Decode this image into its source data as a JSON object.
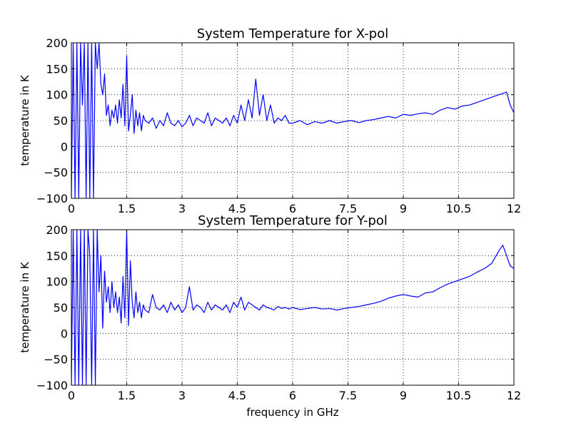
{
  "chart_data": [
    {
      "type": "line",
      "title": "System Temperature for X-pol",
      "xlabel": "",
      "ylabel": "temperature in K",
      "xlim": [
        0,
        12
      ],
      "ylim": [
        -100,
        200
      ],
      "xticks": [
        0,
        1.5,
        3,
        4.5,
        6,
        7.5,
        9,
        10.5,
        12
      ],
      "yticks": [
        -100,
        -50,
        0,
        50,
        100,
        150,
        200
      ],
      "xtick_labels": [
        "0",
        "1.5",
        "3",
        "4.5",
        "6",
        "7.5",
        "9",
        "10.5",
        "12"
      ],
      "ytick_labels": [
        "−100",
        "−50",
        "0",
        "50",
        "100",
        "150",
        "200"
      ],
      "grid": true,
      "series": [
        {
          "color": "#0000ff",
          "x": [
            0.0,
            0.05,
            0.1,
            0.15,
            0.2,
            0.25,
            0.3,
            0.35,
            0.4,
            0.45,
            0.5,
            0.55,
            0.6,
            0.65,
            0.7,
            0.75,
            0.8,
            0.85,
            0.9,
            0.95,
            1.0,
            1.05,
            1.1,
            1.15,
            1.2,
            1.25,
            1.3,
            1.35,
            1.4,
            1.45,
            1.5,
            1.55,
            1.6,
            1.65,
            1.7,
            1.75,
            1.8,
            1.85,
            1.9,
            1.95,
            2.0,
            2.1,
            2.2,
            2.3,
            2.4,
            2.5,
            2.6,
            2.7,
            2.8,
            2.9,
            3.0,
            3.1,
            3.2,
            3.3,
            3.4,
            3.5,
            3.6,
            3.7,
            3.8,
            3.9,
            4.0,
            4.1,
            4.2,
            4.3,
            4.4,
            4.5,
            4.6,
            4.7,
            4.8,
            4.9,
            5.0,
            5.1,
            5.2,
            5.3,
            5.4,
            5.5,
            5.6,
            5.7,
            5.8,
            5.9,
            6.0,
            6.2,
            6.4,
            6.6,
            6.8,
            7.0,
            7.2,
            7.4,
            7.6,
            7.8,
            8.0,
            8.2,
            8.4,
            8.6,
            8.8,
            9.0,
            9.2,
            9.4,
            9.6,
            9.8,
            10.0,
            10.2,
            10.4,
            10.6,
            10.8,
            11.0,
            11.2,
            11.4,
            11.6,
            11.8,
            11.9,
            12.0
          ],
          "y": [
            -100,
            200,
            -100,
            200,
            -100,
            200,
            80,
            200,
            -100,
            200,
            -100,
            200,
            -100,
            200,
            150,
            200,
            120,
            100,
            140,
            60,
            80,
            40,
            70,
            55,
            80,
            45,
            90,
            55,
            120,
            40,
            175,
            30,
            60,
            100,
            25,
            70,
            40,
            65,
            30,
            60,
            50,
            45,
            55,
            35,
            50,
            40,
            65,
            45,
            40,
            50,
            38,
            45,
            60,
            40,
            55,
            50,
            45,
            65,
            40,
            55,
            50,
            45,
            55,
            40,
            60,
            45,
            80,
            50,
            90,
            55,
            130,
            60,
            100,
            50,
            80,
            45,
            55,
            50,
            60,
            45,
            45,
            50,
            42,
            48,
            45,
            50,
            45,
            48,
            50,
            46,
            50,
            52,
            55,
            58,
            55,
            62,
            60,
            63,
            65,
            62,
            70,
            75,
            72,
            78,
            80,
            85,
            90,
            95,
            100,
            105,
            80,
            65
          ]
        }
      ]
    },
    {
      "type": "line",
      "title": "System Temperature for Y-pol",
      "xlabel": "frequency in GHz",
      "ylabel": "temperature in K",
      "xlim": [
        0,
        12
      ],
      "ylim": [
        -100,
        200
      ],
      "xticks": [
        0,
        1.5,
        3,
        4.5,
        6,
        7.5,
        9,
        10.5,
        12
      ],
      "yticks": [
        -100,
        -50,
        0,
        50,
        100,
        150,
        200
      ],
      "xtick_labels": [
        "0",
        "1.5",
        "3",
        "4.5",
        "6",
        "7.5",
        "9",
        "10.5",
        "12"
      ],
      "ytick_labels": [
        "−100",
        "−50",
        "0",
        "50",
        "100",
        "150",
        "200"
      ],
      "grid": true,
      "series": [
        {
          "color": "#0000ff",
          "x": [
            0.0,
            0.05,
            0.1,
            0.15,
            0.2,
            0.25,
            0.3,
            0.35,
            0.4,
            0.45,
            0.5,
            0.55,
            0.6,
            0.65,
            0.7,
            0.75,
            0.8,
            0.85,
            0.9,
            0.95,
            1.0,
            1.05,
            1.1,
            1.15,
            1.2,
            1.25,
            1.3,
            1.35,
            1.4,
            1.45,
            1.5,
            1.55,
            1.6,
            1.65,
            1.7,
            1.75,
            1.8,
            1.85,
            1.9,
            1.95,
            2.0,
            2.1,
            2.2,
            2.3,
            2.4,
            2.5,
            2.6,
            2.7,
            2.8,
            2.9,
            3.0,
            3.1,
            3.2,
            3.3,
            3.4,
            3.5,
            3.6,
            3.7,
            3.8,
            3.9,
            4.0,
            4.1,
            4.2,
            4.3,
            4.4,
            4.5,
            4.6,
            4.7,
            4.8,
            4.9,
            5.0,
            5.1,
            5.2,
            5.3,
            5.4,
            5.5,
            5.6,
            5.7,
            5.8,
            5.9,
            6.0,
            6.2,
            6.4,
            6.6,
            6.8,
            7.0,
            7.2,
            7.4,
            7.6,
            7.8,
            8.0,
            8.2,
            8.4,
            8.6,
            8.8,
            9.0,
            9.2,
            9.4,
            9.6,
            9.8,
            10.0,
            10.2,
            10.4,
            10.6,
            10.8,
            11.0,
            11.2,
            11.4,
            11.6,
            11.7,
            11.8,
            11.9,
            12.0
          ],
          "y": [
            -100,
            200,
            -100,
            200,
            -100,
            200,
            -100,
            200,
            -100,
            200,
            150,
            -100,
            200,
            -100,
            200,
            80,
            150,
            10,
            120,
            60,
            90,
            40,
            100,
            50,
            80,
            40,
            70,
            20,
            110,
            30,
            200,
            15,
            140,
            60,
            30,
            80,
            40,
            60,
            30,
            55,
            45,
            40,
            75,
            50,
            45,
            55,
            40,
            60,
            45,
            55,
            40,
            50,
            90,
            45,
            55,
            50,
            40,
            60,
            45,
            55,
            50,
            45,
            55,
            40,
            60,
            50,
            70,
            45,
            60,
            55,
            50,
            45,
            55,
            50,
            48,
            45,
            52,
            48,
            50,
            47,
            50,
            46,
            48,
            50,
            47,
            48,
            45,
            48,
            50,
            52,
            55,
            58,
            62,
            68,
            72,
            75,
            72,
            70,
            78,
            80,
            88,
            95,
            100,
            105,
            110,
            118,
            125,
            135,
            160,
            170,
            150,
            130,
            125
          ]
        }
      ]
    }
  ]
}
